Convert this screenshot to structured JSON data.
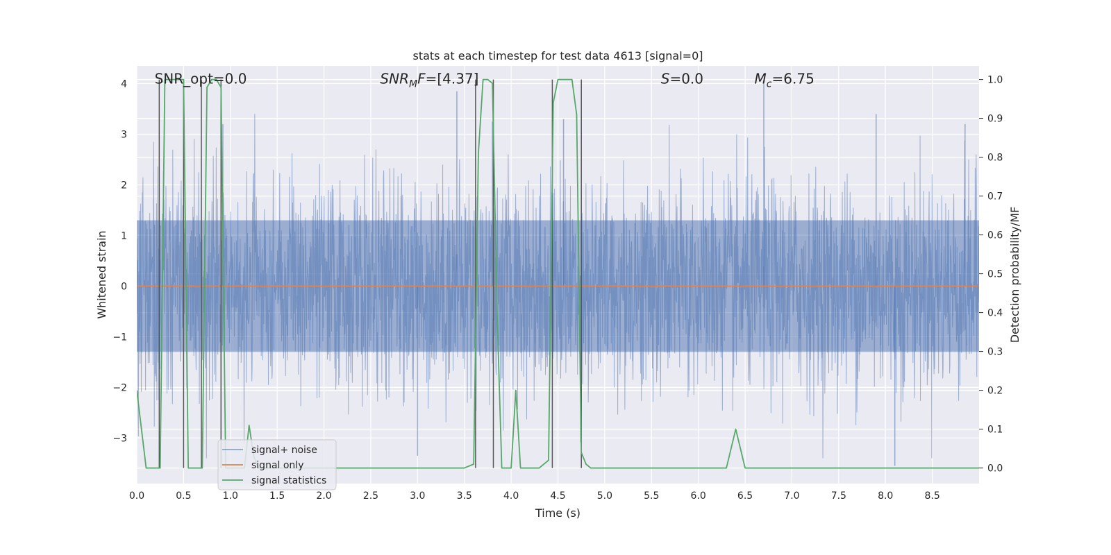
{
  "chart_data": {
    "type": "line",
    "title": "stats at each timestep for test data 4613 [signal=0]",
    "xlabel": "Time (s)",
    "ylabel_left": "Whitened strain",
    "ylabel_right": "Detection probability/MF",
    "xlim": [
      0.0,
      9.0
    ],
    "ylim_left": [
      -3.9,
      4.35
    ],
    "ylim_right": [
      -0.04,
      1.035
    ],
    "x_ticks": [
      0.0,
      0.5,
      1.0,
      1.5,
      2.0,
      2.5,
      3.0,
      3.5,
      4.0,
      4.5,
      5.0,
      5.5,
      6.0,
      6.5,
      7.0,
      7.5,
      8.0,
      8.5
    ],
    "x_tick_labels": [
      "0.0",
      "0.5",
      "1.0",
      "1.5",
      "2.0",
      "2.5",
      "3.0",
      "3.5",
      "4.0",
      "4.5",
      "5.0",
      "5.5",
      "6.0",
      "6.5",
      "7.0",
      "7.5",
      "8.0",
      "8.5"
    ],
    "y_left_ticks": [
      4,
      3,
      2,
      1,
      0,
      -1,
      -2,
      -3
    ],
    "y_left_tick_labels": [
      "4",
      "3",
      "2",
      "1",
      "0",
      "−1",
      "−2",
      "−3"
    ],
    "y_right_ticks": [
      1.0,
      0.9,
      0.8,
      0.7,
      0.6,
      0.5,
      0.4,
      0.3,
      0.2,
      0.1,
      0.0
    ],
    "y_right_tick_labels": [
      "1.0",
      "0.9",
      "0.8",
      "0.7",
      "0.6",
      "0.5",
      "0.4",
      "0.3",
      "0.2",
      "0.1",
      "0.0"
    ],
    "grid": true,
    "background": "#EAEAF2",
    "annotations": [
      {
        "text": "SNR_opt=0.0",
        "x": 0.19,
        "y": 4.0
      },
      {
        "text": "SNR_MF=[4.37]",
        "x": 2.6,
        "y": 4.0
      },
      {
        "text": "S=0.0",
        "x": 5.6,
        "y": 4.0
      },
      {
        "text": "M_c=6.75",
        "x": 6.6,
        "y": 4.0
      }
    ],
    "legend": {
      "position": "lower-left",
      "entries": [
        "signal+ noise",
        "signal only",
        "signal statistics"
      ]
    },
    "series": [
      {
        "name": "signal+ noise",
        "axis": "left",
        "color": "#4C72B0",
        "style": "noise-fill",
        "note_values": "dense white-noise trace, peaks between about −3.6 and 4.0",
        "peaks": [
          {
            "x": 0.92,
            "y": 3.2
          },
          {
            "x": 3.42,
            "y": 3.85
          },
          {
            "x": 3.8,
            "y": 3.25
          },
          {
            "x": 4.56,
            "y": 3.3
          },
          {
            "x": 6.7,
            "y": 4.0
          },
          {
            "x": 7.9,
            "y": 3.4
          },
          {
            "x": 8.1,
            "y": -3.55
          },
          {
            "x": 3.0,
            "y": -3.35
          },
          {
            "x": 8.85,
            "y": 3.2
          }
        ]
      },
      {
        "name": "signal only",
        "axis": "left",
        "color": "#DD8452",
        "x": [
          0.0,
          9.0
        ],
        "y": [
          0.0,
          0.0
        ]
      },
      {
        "name": "signal statistics",
        "axis": "right",
        "color": "#55A868",
        "x": [
          0.0,
          0.05,
          0.1,
          0.15,
          0.2,
          0.25,
          0.3,
          0.35,
          0.4,
          0.45,
          0.5,
          0.55,
          0.6,
          0.65,
          0.7,
          0.75,
          0.8,
          0.85,
          0.9,
          0.95,
          1.0,
          1.05,
          1.1,
          1.15,
          1.2,
          1.25,
          1.3,
          1.5,
          2.0,
          2.5,
          3.0,
          3.5,
          3.6,
          3.65,
          3.7,
          3.75,
          3.8,
          3.85,
          3.9,
          3.95,
          4.0,
          4.05,
          4.1,
          4.15,
          4.2,
          4.3,
          4.4,
          4.45,
          4.5,
          4.55,
          4.6,
          4.65,
          4.7,
          4.75,
          4.8,
          4.85,
          4.9,
          5.0,
          5.5,
          6.0,
          6.25,
          6.3,
          6.35,
          6.4,
          6.5,
          6.6,
          7.0,
          7.5,
          8.0,
          8.5,
          9.0
        ],
        "y": [
          0.2,
          0.1,
          0.0,
          0.0,
          0.0,
          0.0,
          1.0,
          1.0,
          1.0,
          1.0,
          1.0,
          0.0,
          0.0,
          0.0,
          0.0,
          0.98,
          1.0,
          1.0,
          0.98,
          0.0,
          0.0,
          0.0,
          0.0,
          0.0,
          0.11,
          0.03,
          0.0,
          0.0,
          0.0,
          0.0,
          0.0,
          0.0,
          0.01,
          0.81,
          1.0,
          1.0,
          0.99,
          0.4,
          0.0,
          0.0,
          0.0,
          0.2,
          0.0,
          0.0,
          0.0,
          0.0,
          0.02,
          0.94,
          1.0,
          1.0,
          1.0,
          1.0,
          0.91,
          0.04,
          0.01,
          0.0,
          0.0,
          0.0,
          0.0,
          0.0,
          0.0,
          0.0,
          0.05,
          0.1,
          0.0,
          0.0,
          0.0,
          0.0,
          0.0,
          0.0,
          0.0
        ]
      }
    ],
    "vertical_lines": {
      "color": "#555555",
      "x": [
        0.24,
        0.5,
        0.69,
        0.9,
        3.62,
        3.81,
        4.44,
        4.75
      ]
    }
  }
}
